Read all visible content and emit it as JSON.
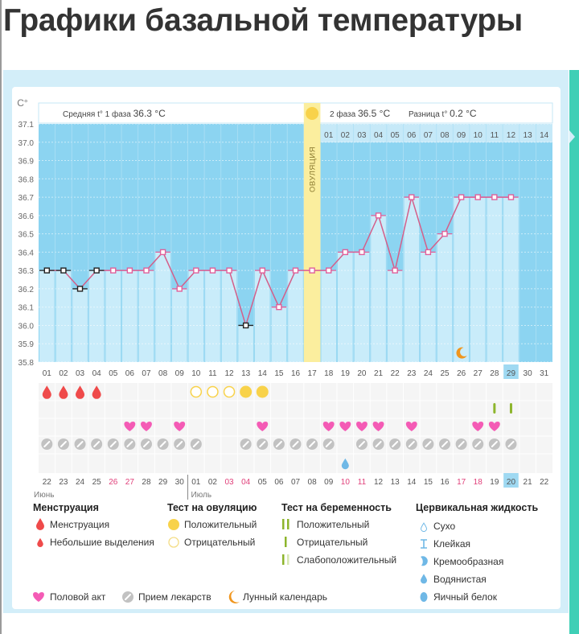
{
  "page_title": "Графики базальной температуры",
  "colors": {
    "background": "#8cd4f1",
    "bar": "#c9ecfa",
    "line": "#d45f8a",
    "marker_pink": "#e0609a",
    "marker_black": "#222222",
    "ovulation_band": "#fbee9e",
    "ovulation_sun": "#f8d24a",
    "menstruation": "#ef4a4a",
    "heart": "#f45bb5",
    "pill": "#c2c2c2",
    "moon": "#f0961e",
    "pregnancy_test": "#8db52c",
    "cervical": "#6fb8e6",
    "weekend": "#e0407a",
    "today": "#9fd9f2",
    "teal": "#3fcfb6"
  },
  "chart_data": {
    "type": "line",
    "ylabel": "C°",
    "ylim": [
      35.8,
      37.1
    ],
    "yticks": [
      "37.1",
      "37.0",
      "36.9",
      "36.8",
      "36.7",
      "36.6",
      "36.5",
      "36.4",
      "36.3",
      "36.2",
      "36.1",
      "36.0",
      "35.9",
      "35.8"
    ],
    "grid": true,
    "phase1_label": "Средняя t° 1 фаза",
    "phase1_value": "36.3 °C",
    "phase2_label": "2 фаза",
    "phase2_value": "36.5 °C",
    "diff_label": "Разница t°",
    "diff_value": "0.2 °C",
    "ovulation_label": "ОВУЛЯЦИЯ",
    "ovulation_day": "17",
    "cycle_days": [
      "01",
      "02",
      "03",
      "04",
      "05",
      "06",
      "07",
      "08",
      "09",
      "10",
      "11",
      "12",
      "13",
      "14",
      "15",
      "16",
      "17",
      "18",
      "19",
      "20",
      "21",
      "22",
      "23",
      "24",
      "25",
      "26",
      "27",
      "28",
      "29",
      "30",
      "31"
    ],
    "phase2_days": [
      "01",
      "02",
      "03",
      "04",
      "05",
      "06",
      "07",
      "08",
      "09",
      "10",
      "11",
      "12",
      "13",
      "14"
    ],
    "temperatures": [
      36.3,
      36.3,
      36.2,
      36.3,
      36.3,
      36.3,
      36.3,
      36.4,
      36.2,
      36.3,
      36.3,
      36.3,
      36.0,
      36.3,
      36.1,
      36.3,
      36.3,
      36.3,
      36.4,
      36.4,
      36.6,
      36.3,
      36.7,
      36.4,
      36.5,
      36.7,
      36.7,
      36.7,
      36.7,
      null,
      null
    ],
    "excluded_marker_days": [
      "01",
      "02",
      "03",
      "04",
      "13"
    ],
    "today_day": "29",
    "calendar_dates": [
      "22",
      "23",
      "24",
      "25",
      "26",
      "27",
      "28",
      "29",
      "30",
      "01",
      "02",
      "03",
      "04",
      "05",
      "06",
      "07",
      "08",
      "09",
      "10",
      "11",
      "12",
      "13",
      "14",
      "15",
      "16",
      "17",
      "18",
      "19",
      "20",
      "21",
      "22"
    ],
    "weekend_dates_idx": [
      4,
      5,
      11,
      12,
      18,
      19,
      25,
      26
    ],
    "months": [
      "Июнь",
      "Июль"
    ],
    "events": {
      "menstruation": [
        "01",
        "02",
        "03",
        "04"
      ],
      "ovulation_test_negative": [
        "10",
        "11",
        "12"
      ],
      "ovulation_test_positive": [
        "13",
        "14"
      ],
      "pregnancy_test": [
        "28",
        "29"
      ],
      "intercourse": [
        "06",
        "07",
        "09",
        "14",
        "18",
        "19",
        "20",
        "21",
        "23",
        "27",
        "28"
      ],
      "medication": [
        "01",
        "02",
        "03",
        "04",
        "05",
        "06",
        "07",
        "08",
        "09",
        "10",
        "13",
        "14",
        "15",
        "16",
        "17",
        "18",
        "20",
        "21",
        "22",
        "23",
        "24",
        "25",
        "26",
        "27",
        "28",
        "29"
      ],
      "cervical_watery": [
        "19"
      ],
      "moon": [
        "26"
      ]
    }
  },
  "legend": {
    "menstruation": {
      "title": "Менструация",
      "items": [
        "Менструация",
        "Небольшие выделения"
      ]
    },
    "ovulation_test": {
      "title": "Тест на овуляцию",
      "items": [
        "Положительный",
        "Отрицательный"
      ]
    },
    "pregnancy_test": {
      "title": "Тест на беременность",
      "items": [
        "Положительный",
        "Отрицательный",
        "Слабоположительный"
      ]
    },
    "cervical": {
      "title": "Цервикальная жидкость",
      "items": [
        "Сухо",
        "Клейкая",
        "Кремообразная",
        "Водянистая",
        "Яичный белок"
      ]
    },
    "bottom": [
      "Половой акт",
      "Прием лекарств",
      "Лунный календарь"
    ]
  }
}
